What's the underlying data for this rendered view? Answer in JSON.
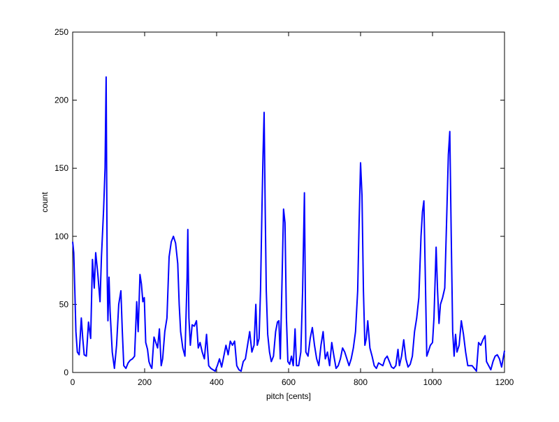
{
  "chart_data": {
    "type": "line",
    "xlabel": "pitch [cents]",
    "ylabel": "count",
    "x": [
      0,
      3,
      6,
      9,
      13,
      18,
      24,
      28,
      32,
      38,
      44,
      50,
      55,
      60,
      64,
      70,
      76,
      80,
      86,
      90,
      93,
      96,
      98,
      101,
      104,
      110,
      116,
      122,
      128,
      134,
      138,
      142,
      148,
      154,
      160,
      166,
      172,
      178,
      182,
      187,
      191,
      195,
      199,
      203,
      208,
      212,
      216,
      220,
      226,
      231,
      236,
      241,
      246,
      250,
      256,
      262,
      268,
      274,
      280,
      286,
      292,
      296,
      300,
      306,
      312,
      318,
      320,
      323,
      327,
      332,
      338,
      344,
      349,
      354,
      360,
      366,
      372,
      378,
      384,
      390,
      396,
      402,
      408,
      414,
      420,
      426,
      432,
      438,
      444,
      450,
      456,
      462,
      468,
      474,
      480,
      486,
      492,
      498,
      504,
      509,
      513,
      518,
      522,
      526,
      529,
      532,
      535,
      538,
      542,
      547,
      552,
      558,
      564,
      569,
      573,
      577,
      582,
      586,
      590,
      594,
      598,
      603,
      608,
      613,
      618,
      622,
      628,
      634,
      639,
      644,
      648,
      654,
      660,
      666,
      672,
      678,
      684,
      690,
      696,
      702,
      708,
      714,
      720,
      726,
      732,
      738,
      744,
      750,
      756,
      762,
      768,
      774,
      780,
      786,
      792,
      796,
      800,
      804,
      808,
      812,
      816,
      820,
      826,
      832,
      838,
      844,
      850,
      856,
      862,
      868,
      874,
      880,
      886,
      892,
      898,
      904,
      908,
      914,
      920,
      926,
      932,
      938,
      944,
      950,
      956,
      962,
      968,
      972,
      976,
      980,
      984,
      988,
      994,
      1000,
      1004,
      1010,
      1014,
      1018,
      1022,
      1028,
      1034,
      1040,
      1044,
      1048,
      1052,
      1056,
      1060,
      1064,
      1068,
      1074,
      1080,
      1086,
      1092,
      1098,
      1104,
      1110,
      1116,
      1122,
      1128,
      1134,
      1140,
      1146,
      1150,
      1156,
      1162,
      1168,
      1174,
      1180,
      1186,
      1192,
      1200
    ],
    "series": [
      {
        "color": "#0000ff",
        "values": [
          96,
          88,
          60,
          30,
          15,
          13,
          40,
          25,
          13,
          12,
          37,
          25,
          83,
          62,
          88,
          72,
          52,
          85,
          120,
          150,
          217,
          70,
          38,
          70,
          45,
          15,
          3,
          20,
          50,
          60,
          30,
          5,
          3,
          7,
          9,
          10,
          12,
          52,
          30,
          72,
          65,
          52,
          55,
          22,
          17,
          8,
          5,
          3,
          26,
          22,
          18,
          32,
          5,
          10,
          30,
          40,
          85,
          96,
          100,
          95,
          80,
          50,
          30,
          18,
          12,
          70,
          105,
          40,
          20,
          35,
          34,
          38,
          18,
          22,
          15,
          10,
          28,
          5,
          3,
          2,
          1,
          5,
          10,
          4,
          12,
          20,
          13,
          23,
          20,
          23,
          5,
          2,
          1,
          8,
          10,
          20,
          30,
          15,
          20,
          50,
          20,
          25,
          60,
          120,
          160,
          191,
          120,
          60,
          28,
          15,
          8,
          12,
          30,
          37,
          38,
          10,
          70,
          120,
          110,
          40,
          8,
          6,
          12,
          5,
          32,
          5,
          5,
          15,
          60,
          132,
          15,
          12,
          25,
          33,
          20,
          10,
          5,
          20,
          30,
          10,
          15,
          5,
          22,
          12,
          3,
          5,
          10,
          18,
          15,
          10,
          5,
          10,
          18,
          30,
          60,
          110,
          154,
          130,
          60,
          20,
          25,
          38,
          18,
          12,
          5,
          3,
          7,
          6,
          5,
          10,
          12,
          8,
          4,
          3,
          5,
          17,
          5,
          12,
          24,
          10,
          4,
          6,
          12,
          30,
          40,
          55,
          100,
          118,
          126,
          70,
          12,
          15,
          20,
          22,
          40,
          92,
          60,
          36,
          50,
          55,
          62,
          120,
          160,
          177,
          100,
          30,
          12,
          28,
          15,
          20,
          38,
          28,
          15,
          5,
          5,
          5,
          3,
          1,
          22,
          20,
          24,
          27,
          8,
          5,
          2,
          8,
          12,
          13,
          10,
          4,
          16
        ]
      }
    ],
    "xlim": [
      0,
      1200
    ],
    "xticks": [
      0,
      200,
      400,
      600,
      800,
      1000,
      1200
    ],
    "ylim": [
      0,
      250
    ],
    "yticks": [
      0,
      50,
      100,
      150,
      200,
      250
    ]
  }
}
